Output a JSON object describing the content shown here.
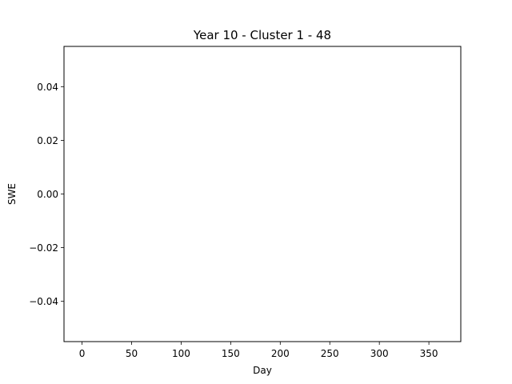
{
  "chart_data": {
    "type": "line",
    "title": "Year 10 - Cluster 1 - 48",
    "xlabel": "Day",
    "ylabel": "SWE",
    "xlim": [
      -18.2,
      382.2
    ],
    "ylim": [
      -0.055,
      0.055
    ],
    "xticks": [
      0,
      50,
      100,
      150,
      200,
      250,
      300,
      350
    ],
    "xtick_labels": [
      "0",
      "50",
      "100",
      "150",
      "200",
      "250",
      "300",
      "350"
    ],
    "yticks": [
      0.04,
      0.02,
      0.0,
      -0.02,
      -0.04
    ],
    "ytick_labels": [
      "0.04",
      "0.02",
      "0.00",
      "−0.02",
      "−0.04"
    ],
    "series": [],
    "grid": false,
    "legend": "none"
  }
}
